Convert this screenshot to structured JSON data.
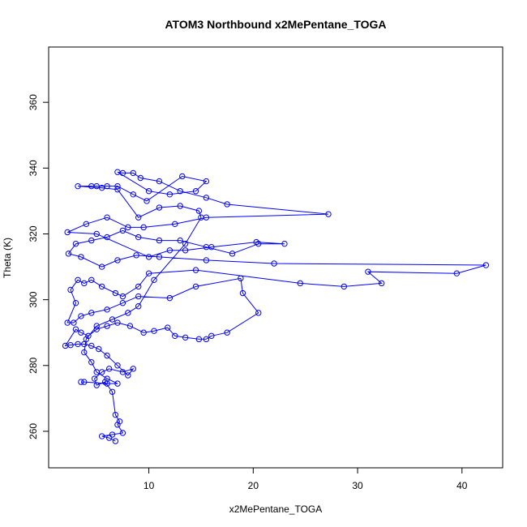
{
  "chart_data": {
    "type": "line-points",
    "title": "ATOM3 Northbound x2MePentane_TOGA",
    "x_label": "x2MePentane_TOGA",
    "y_label": "Theta (K)",
    "xlim": [
      0.4,
      43.9
    ],
    "ylim": [
      248.9,
      376.8
    ],
    "xticks": [
      10,
      20,
      30,
      40
    ],
    "yticks": [
      260,
      280,
      300,
      320,
      340,
      360
    ],
    "color": "#0000ff",
    "x": [
      6.8,
      6.2,
      5.5,
      6.5,
      7.5,
      7.0,
      7.2,
      6.8,
      6.5,
      5.8,
      5.0,
      4.8,
      5.5,
      6.2,
      7.5,
      8.5,
      8.0,
      7.0,
      6.0,
      5.2,
      4.5,
      3.8,
      3.2,
      2.5,
      2.0,
      3.0,
      3.5,
      4.2,
      5.0,
      6.0,
      7.0,
      8.2,
      9.5,
      10.5,
      11.8,
      12.5,
      13.5,
      14.8,
      15.5,
      16.0,
      17.5,
      20.5,
      19.0,
      18.8,
      14.5,
      12.0,
      9.0,
      7.5,
      6.0,
      4.5,
      3.5,
      2.8,
      2.2,
      3.0,
      2.5,
      3.2,
      3.8,
      4.5,
      5.5,
      6.8,
      7.5,
      9.0,
      10.0,
      14.5,
      24.5,
      28.7,
      32.3,
      31.0,
      39.5,
      42.3,
      22.0,
      15.5,
      11.0,
      8.8,
      7.0,
      5.5,
      3.5,
      2.3,
      3.0,
      4.5,
      6.0,
      7.5,
      9.0,
      11.0,
      13.0,
      15.5,
      18.0,
      20.5,
      23.0,
      20.3,
      16.0,
      13.5,
      12.0,
      10.0,
      5.0,
      2.2,
      4.0,
      6.0,
      8.0,
      9.5,
      12.5,
      15.5,
      27.2,
      17.5,
      15.5,
      13.0,
      11.0,
      9.2,
      8.5,
      7.5,
      7.0,
      10.0,
      12.0,
      14.5,
      15.5,
      13.2,
      9.8,
      8.5,
      7.0,
      6.0,
      5.0,
      4.5,
      3.2,
      5.5,
      7.0,
      9.0,
      11.0,
      13.0,
      14.8,
      15.0,
      13.5,
      10.5,
      9.0,
      8.0,
      6.5,
      5.0,
      4.0,
      3.8,
      4.5,
      5.0,
      6.0,
      7.0,
      6.0,
      3.8,
      3.5
    ],
    "values": [
      257,
      258,
      258.5,
      259,
      259.5,
      262,
      263,
      265,
      272,
      275,
      274,
      276,
      278,
      279,
      278,
      279,
      277,
      280,
      283,
      285,
      286,
      286.5,
      286.5,
      286.2,
      286,
      291,
      290,
      289,
      291,
      292,
      293,
      292,
      290,
      290.5,
      291.5,
      289,
      288.5,
      288,
      288,
      289,
      290,
      296,
      302,
      306.5,
      304,
      300.5,
      301,
      299,
      297,
      296,
      295,
      293,
      293,
      299,
      303,
      306,
      305,
      306,
      304,
      302,
      301,
      304,
      308,
      309,
      305,
      304,
      305,
      308.5,
      308,
      310.5,
      311,
      312,
      313,
      313.5,
      312,
      310,
      313,
      314,
      317,
      318,
      319,
      321,
      319,
      318,
      318,
      316,
      314,
      317,
      317,
      317.5,
      316,
      315,
      315,
      313,
      320,
      320.5,
      323,
      325,
      322,
      322,
      323,
      325,
      326,
      329,
      331,
      333,
      336,
      337,
      338.5,
      338.5,
      338.8,
      333,
      332,
      333,
      336,
      337.5,
      330,
      332,
      334.5,
      334.5,
      334.5,
      334.5,
      334.5,
      334,
      333.5,
      325,
      328,
      328.5,
      327,
      325,
      317,
      306,
      298,
      296,
      294,
      292,
      288,
      284,
      281,
      278,
      276,
      274.5,
      274.5,
      275,
      275
    ]
  }
}
